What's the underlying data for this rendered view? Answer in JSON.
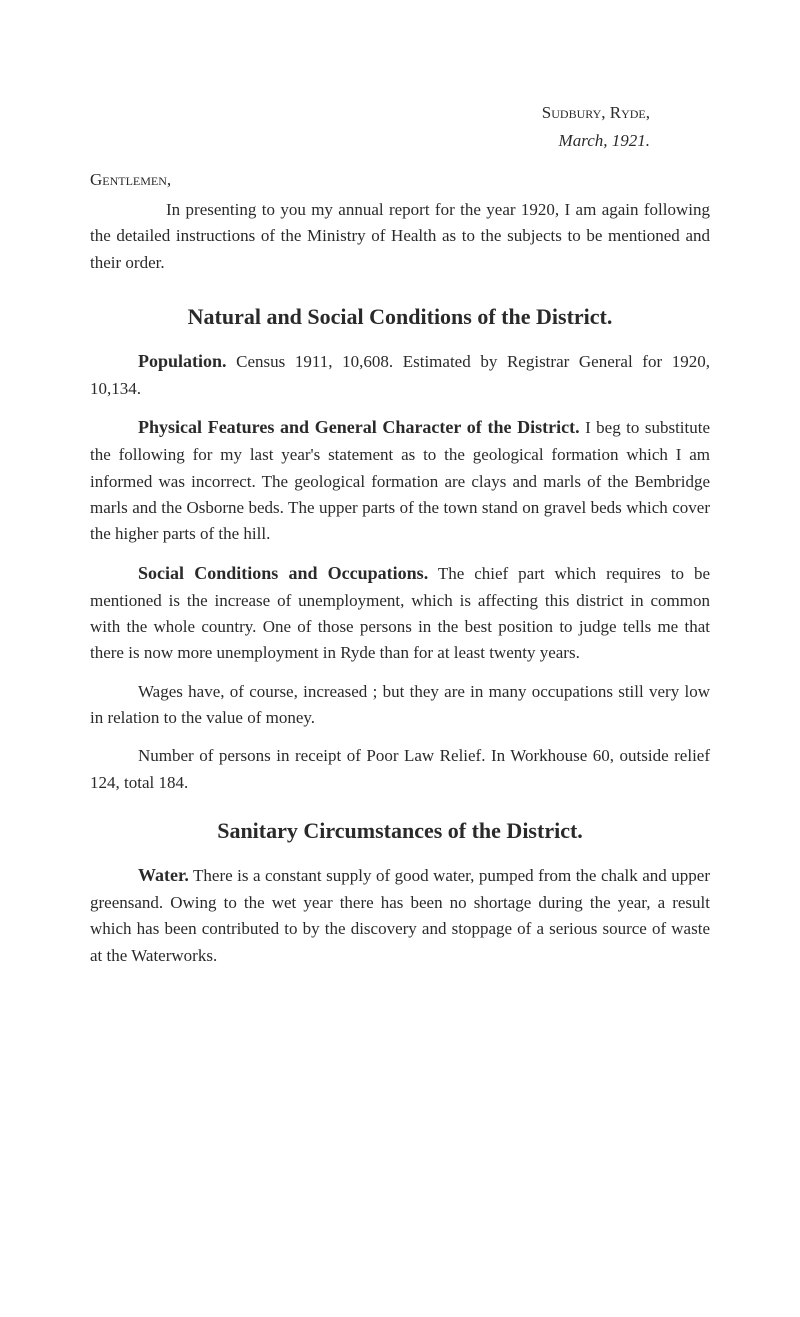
{
  "header": {
    "location": "Sudbury, Ryde,",
    "date": "March, 1921."
  },
  "salutation": "Gentlemen,",
  "intro": "In presenting to you my annual report for the year 1920, I am again following the detailed instructions of the Ministry of Health as to the subjects to be mentioned and their order.",
  "section1": {
    "heading": "Natural and Social Conditions of the District.",
    "population": {
      "label": "Population.",
      "text": " Census 1911, 10,608. Estimated by Registrar General for 1920, 10,134."
    },
    "physical": {
      "label": "Physical Features and General Character of the District.",
      "text": " I beg to substitute the following for my last year's statement as to the geological formation which I am informed was incorrect. The geological formation are clays and marls of the Bembridge marls and the Osborne beds. The upper parts of the town stand on gravel beds which cover the higher parts of the hill."
    },
    "social": {
      "label": "Social Conditions and Occupations.",
      "text": " The chief part which requires to be mentioned is the increase of unemployment, which is affecting this district in common with the whole country. One of those persons in the best position to judge tells me that there is now more unemployment in Ryde than for at least twenty years."
    },
    "wages": "Wages have, of course, increased ; but they are in many occupations still very low in relation to the value of money.",
    "relief": "Number of persons in receipt of Poor Law Relief. In Workhouse 60, outside relief 124, total 184."
  },
  "section2": {
    "heading": "Sanitary Circumstances of the District.",
    "water": {
      "label": "Water.",
      "text": " There is a constant supply of good water, pumped from the chalk and upper greensand. Owing to the wet year there has been no shortage during the year, a result which has been contributed to by the discovery and stoppage of a serious source of waste at the Waterworks."
    }
  }
}
